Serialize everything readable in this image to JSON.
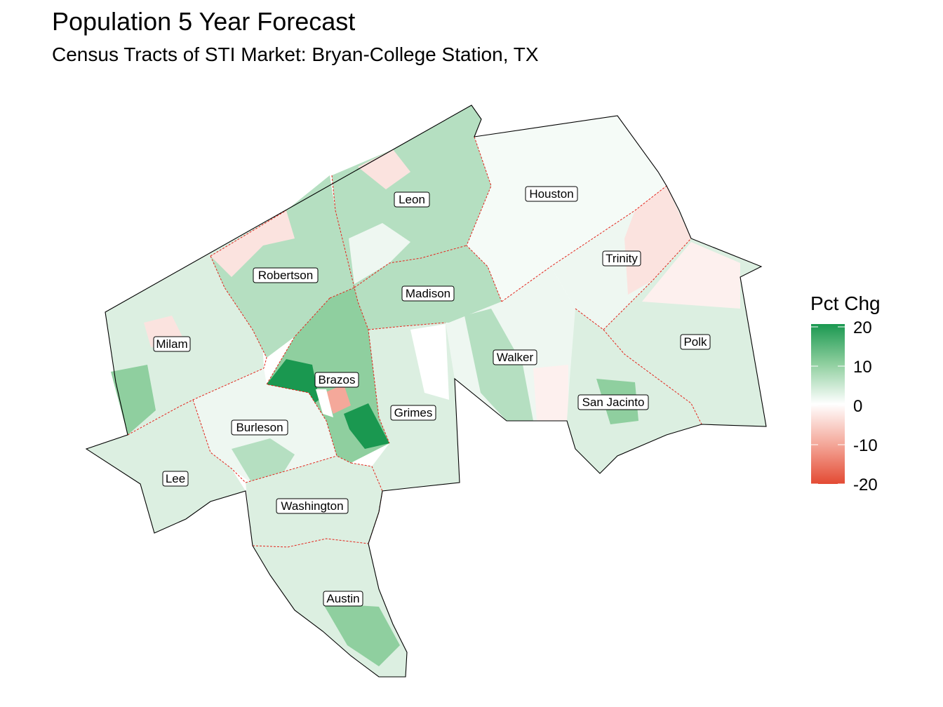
{
  "title": "Population 5 Year Forecast",
  "subtitle": "Census Tracts of STI Market: Bryan-College Station, TX",
  "legend": {
    "title": "Pct Chg",
    "min": -20,
    "max": 20,
    "ticks": [
      {
        "value": 20,
        "label": "20"
      },
      {
        "value": 10,
        "label": "10"
      },
      {
        "value": 0,
        "label": "0"
      },
      {
        "value": -10,
        "label": "-10"
      },
      {
        "value": -20,
        "label": "-20"
      }
    ],
    "colors": {
      "high": "#1a9850",
      "mid": "#ffffff",
      "low": "#e34a33"
    }
  },
  "counties": [
    {
      "id": "leon",
      "label": "Leon"
    },
    {
      "id": "houston",
      "label": "Houston"
    },
    {
      "id": "robertson",
      "label": "Robertson"
    },
    {
      "id": "trinity",
      "label": "Trinity"
    },
    {
      "id": "madison",
      "label": "Madison"
    },
    {
      "id": "milam",
      "label": "Milam"
    },
    {
      "id": "polk",
      "label": "Polk"
    },
    {
      "id": "brazos",
      "label": "Brazos"
    },
    {
      "id": "walker",
      "label": "Walker"
    },
    {
      "id": "grimes",
      "label": "Grimes"
    },
    {
      "id": "san-jacinto",
      "label": "San Jacinto"
    },
    {
      "id": "burleson",
      "label": "Burleson"
    },
    {
      "id": "lee",
      "label": "Lee"
    },
    {
      "id": "washington",
      "label": "Washington"
    },
    {
      "id": "austin",
      "label": "Austin"
    }
  ]
}
